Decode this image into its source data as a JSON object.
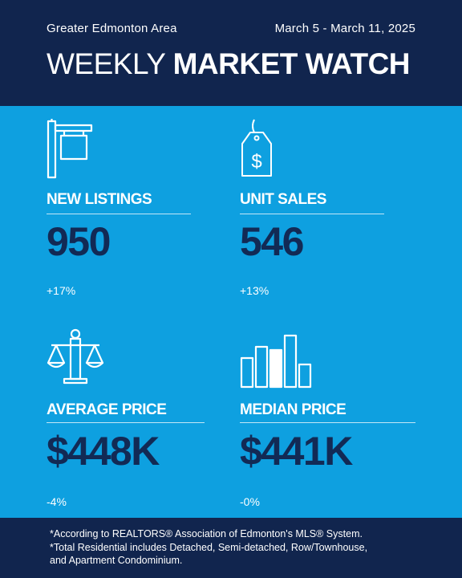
{
  "header": {
    "region": "Greater Edmonton Area",
    "date_range": "March 5 - March 11, 2025",
    "title_light": "WEEKLY ",
    "title_bold": "MARKET WATCH"
  },
  "stats": {
    "new_listings": {
      "label": "NEW LISTINGS",
      "value": "950",
      "change": "+17%",
      "icon": "for-sale-sign-icon"
    },
    "unit_sales": {
      "label": "UNIT SALES",
      "value": "546",
      "change": "+13%",
      "icon": "price-tag-icon"
    },
    "average_price": {
      "label": "AVERAGE PRICE",
      "value": "$448K",
      "change": "-4%",
      "icon": "scales-icon"
    },
    "median_price": {
      "label": "MEDIAN PRICE",
      "value": "$441K",
      "change": "-0%",
      "icon": "bar-chart-icon"
    }
  },
  "footer": {
    "line1": "*According to REALTORS® Association of Edmonton's MLS® System.",
    "line2": "*Total Residential includes Detached, Semi-detached, Row/Townhouse,",
    "line3": "and Apartment Condominium."
  },
  "colors": {
    "header_bg": "#11254e",
    "body_bg": "#0ea0e0",
    "value_text": "#122a55",
    "text_light": "#ffffff"
  }
}
